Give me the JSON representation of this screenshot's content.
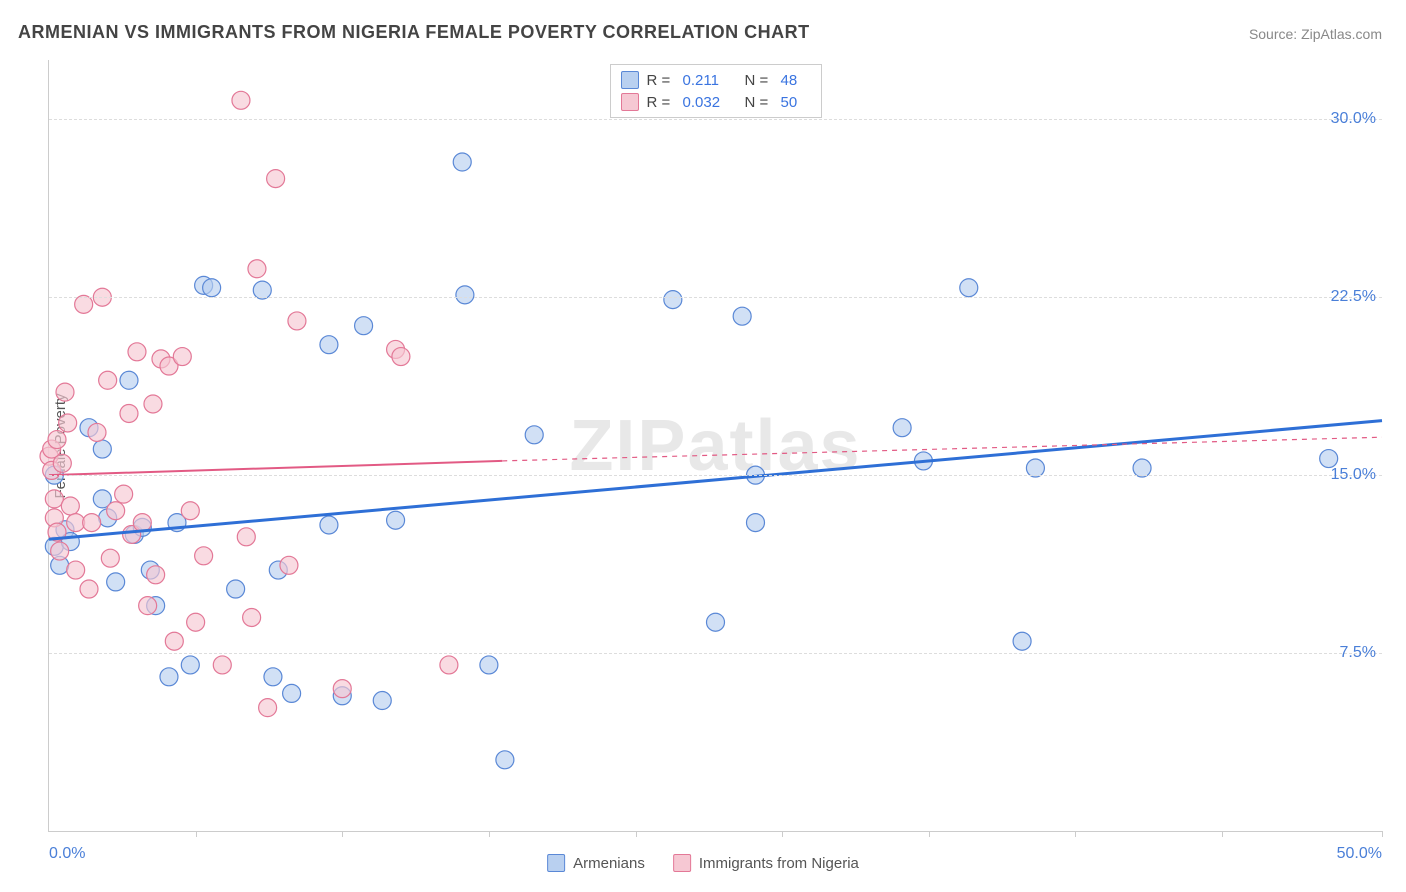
{
  "title": "ARMENIAN VS IMMIGRANTS FROM NIGERIA FEMALE POVERTY CORRELATION CHART",
  "source_label": "Source: ZipAtlas.com",
  "watermark": "ZIPatlas",
  "ylabel": "Female Poverty",
  "chart": {
    "type": "scatter-with-regression",
    "background_color": "#ffffff",
    "grid_color": "#dddddd",
    "axis_color": "#cccccc",
    "xlim": [
      0,
      50
    ],
    "ylim": [
      0,
      32.5
    ],
    "xaxis_label_min": "0.0%",
    "xaxis_label_max": "50.0%",
    "xtick_positions": [
      5.5,
      11,
      16.5,
      22,
      27.5,
      33,
      38.5,
      44,
      50
    ],
    "ygridlines": [
      {
        "value": 7.5,
        "label": "7.5%"
      },
      {
        "value": 15.0,
        "label": "15.0%"
      },
      {
        "value": 22.5,
        "label": "22.5%"
      },
      {
        "value": 30.0,
        "label": "30.0%"
      }
    ],
    "tick_label_color": "#4a7fd8",
    "tick_label_fontsize": 16,
    "title_fontsize": 18,
    "title_color": "#444444",
    "marker_radius": 9,
    "marker_stroke_width": 1.2,
    "series": [
      {
        "name": "Armenians",
        "fill_color": "#b9d0f0",
        "stroke_color": "#5a88d6",
        "fill_opacity": 0.65,
        "R": "0.211",
        "N": "48",
        "trend": {
          "x1": 0,
          "y1": 12.3,
          "x2": 50,
          "y2": 17.3,
          "color": "#2e6fd6",
          "width": 3,
          "dash": null,
          "extrapolate_dash": null
        },
        "points": [
          [
            0.2,
            15.0
          ],
          [
            0.2,
            12.0
          ],
          [
            0.4,
            11.2
          ],
          [
            0.6,
            12.7
          ],
          [
            0.8,
            12.2
          ],
          [
            1.5,
            17.0
          ],
          [
            2.0,
            16.1
          ],
          [
            2.0,
            14.0
          ],
          [
            2.2,
            13.2
          ],
          [
            2.5,
            10.5
          ],
          [
            3.0,
            19.0
          ],
          [
            3.2,
            12.5
          ],
          [
            3.5,
            12.8
          ],
          [
            3.8,
            11.0
          ],
          [
            4.0,
            9.5
          ],
          [
            4.5,
            6.5
          ],
          [
            4.8,
            13.0
          ],
          [
            5.3,
            7.0
          ],
          [
            5.8,
            23.0
          ],
          [
            6.1,
            22.9
          ],
          [
            7.0,
            10.2
          ],
          [
            8.0,
            22.8
          ],
          [
            8.4,
            6.5
          ],
          [
            8.6,
            11.0
          ],
          [
            9.1,
            5.8
          ],
          [
            10.5,
            20.5
          ],
          [
            10.5,
            12.9
          ],
          [
            11.0,
            5.7
          ],
          [
            11.8,
            21.3
          ],
          [
            12.5,
            5.5
          ],
          [
            13.0,
            13.1
          ],
          [
            15.5,
            28.2
          ],
          [
            15.6,
            22.6
          ],
          [
            16.5,
            7.0
          ],
          [
            17.1,
            3.0
          ],
          [
            18.2,
            16.7
          ],
          [
            23.4,
            22.4
          ],
          [
            25.0,
            8.8
          ],
          [
            26.0,
            21.7
          ],
          [
            26.5,
            13.0
          ],
          [
            26.5,
            15.0
          ],
          [
            32.0,
            17.0
          ],
          [
            32.8,
            15.6
          ],
          [
            34.5,
            22.9
          ],
          [
            36.5,
            8.0
          ],
          [
            37.0,
            15.3
          ],
          [
            41.0,
            15.3
          ],
          [
            48.0,
            15.7
          ]
        ]
      },
      {
        "name": "Immigrants from Nigeria",
        "fill_color": "#f6c8d3",
        "stroke_color": "#e37897",
        "fill_opacity": 0.65,
        "R": "0.032",
        "N": "50",
        "trend": {
          "x1": 0,
          "y1": 15.0,
          "x2": 17,
          "y2": 15.6,
          "color": "#e25a84",
          "width": 2,
          "dash": null,
          "extrapolate_dash": "5,5",
          "ex_x2": 50,
          "ex_y2": 16.6
        },
        "points": [
          [
            0.0,
            15.8
          ],
          [
            0.1,
            16.1
          ],
          [
            0.1,
            15.2
          ],
          [
            0.2,
            14.0
          ],
          [
            0.2,
            13.2
          ],
          [
            0.3,
            12.6
          ],
          [
            0.3,
            16.5
          ],
          [
            0.4,
            11.8
          ],
          [
            0.5,
            15.5
          ],
          [
            0.6,
            18.5
          ],
          [
            0.7,
            17.2
          ],
          [
            0.8,
            13.7
          ],
          [
            1.0,
            11.0
          ],
          [
            1.0,
            13.0
          ],
          [
            1.3,
            22.2
          ],
          [
            1.5,
            10.2
          ],
          [
            1.6,
            13.0
          ],
          [
            1.8,
            16.8
          ],
          [
            2.0,
            22.5
          ],
          [
            2.2,
            19.0
          ],
          [
            2.3,
            11.5
          ],
          [
            2.5,
            13.5
          ],
          [
            2.8,
            14.2
          ],
          [
            3.0,
            17.6
          ],
          [
            3.1,
            12.5
          ],
          [
            3.3,
            20.2
          ],
          [
            3.5,
            13.0
          ],
          [
            3.7,
            9.5
          ],
          [
            3.9,
            18.0
          ],
          [
            4.0,
            10.8
          ],
          [
            4.2,
            19.9
          ],
          [
            4.5,
            19.6
          ],
          [
            4.7,
            8.0
          ],
          [
            5.0,
            20.0
          ],
          [
            5.3,
            13.5
          ],
          [
            5.5,
            8.8
          ],
          [
            5.8,
            11.6
          ],
          [
            6.5,
            7.0
          ],
          [
            7.2,
            30.8
          ],
          [
            7.4,
            12.4
          ],
          [
            7.6,
            9.0
          ],
          [
            7.8,
            23.7
          ],
          [
            8.2,
            5.2
          ],
          [
            8.5,
            27.5
          ],
          [
            9.0,
            11.2
          ],
          [
            9.3,
            21.5
          ],
          [
            11.0,
            6.0
          ],
          [
            13.0,
            20.3
          ],
          [
            13.2,
            20.0
          ],
          [
            15.0,
            7.0
          ]
        ]
      }
    ]
  },
  "legend_top": {
    "rows": [
      {
        "swatch_fill": "#b9d0f0",
        "swatch_stroke": "#5a88d6",
        "R_label": "R =",
        "R_value": "0.211",
        "N_label": "N =",
        "N_value": "48"
      },
      {
        "swatch_fill": "#f6c8d3",
        "swatch_stroke": "#e37897",
        "R_label": "R =",
        "R_value": "0.032",
        "N_label": "N =",
        "N_value": "50"
      }
    ]
  },
  "legend_bottom": {
    "items": [
      {
        "swatch_fill": "#b9d0f0",
        "swatch_stroke": "#5a88d6",
        "label": "Armenians"
      },
      {
        "swatch_fill": "#f6c8d3",
        "swatch_stroke": "#e37897",
        "label": "Immigrants from Nigeria"
      }
    ]
  }
}
